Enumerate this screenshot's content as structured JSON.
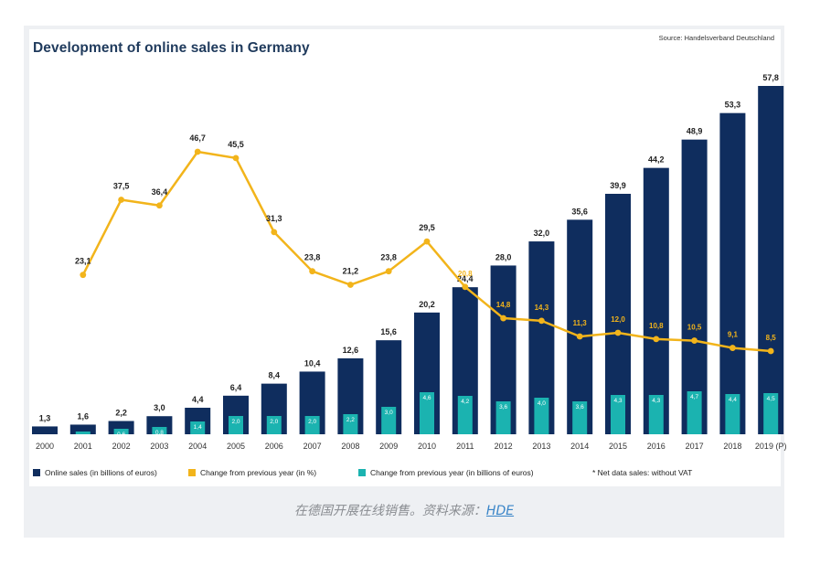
{
  "title": "Development of online sales in Germany",
  "source": "Source: Handelsverband Deutschland",
  "colors": {
    "sales": "#0f2d5e",
    "sales_change_euros": "#1bb3b0",
    "pct_change": "#f2b41b",
    "title": "#1f3a5c"
  },
  "chart_data": {
    "type": "bar",
    "title": "Development of online sales in Germany",
    "categories": [
      "2000",
      "2001",
      "2002",
      "2003",
      "2004",
      "2005",
      "2006",
      "2007",
      "2008",
      "2009",
      "2010",
      "2011",
      "2012",
      "2013",
      "2014",
      "2015",
      "2016",
      "2017",
      "2018",
      "2019 (P)"
    ],
    "series": [
      {
        "name": "Online sales (in billions of euros)",
        "type": "bar",
        "values": [
          1.3,
          1.6,
          2.2,
          3.0,
          4.4,
          6.4,
          8.4,
          10.4,
          12.6,
          15.6,
          20.2,
          24.4,
          28.0,
          32.0,
          35.6,
          39.9,
          44.2,
          48.9,
          53.3,
          57.8
        ],
        "labels": [
          "1,3",
          "1,6",
          "2,2",
          "3,0",
          "4,4",
          "6,4",
          "8,4",
          "10,4",
          "12,6",
          "15,6",
          "20,2",
          "24,4",
          "28,0",
          "32,0",
          "35,6",
          "39,9",
          "44,2",
          "48,9",
          "53,3",
          "57,8"
        ]
      },
      {
        "name": "Change from previous year (in billions of euros)",
        "type": "bar",
        "values": [
          null,
          0.3,
          0.6,
          0.8,
          1.4,
          2.0,
          2.0,
          2.0,
          2.2,
          3.0,
          4.6,
          4.2,
          3.6,
          4.0,
          3.6,
          4.3,
          4.3,
          4.7,
          4.4,
          4.5
        ],
        "labels": [
          "",
          "0,3",
          "0,6",
          "0,8",
          "1,4",
          "2,0",
          "2,0",
          "2,0",
          "2,2",
          "3,0",
          "4,6",
          "4,2",
          "3,6",
          "4,0",
          "3,6",
          "4,3",
          "4,3",
          "4,7",
          "4,4",
          "4,5"
        ]
      },
      {
        "name": "Change from previous year (in %)",
        "type": "line",
        "values": [
          null,
          23.1,
          37.5,
          36.4,
          46.7,
          45.5,
          31.3,
          23.8,
          21.2,
          23.8,
          29.5,
          20.8,
          14.8,
          14.3,
          11.3,
          12.0,
          10.8,
          10.5,
          9.1,
          8.5
        ],
        "labels": [
          "",
          "23,1",
          "37,5",
          "36,4",
          "46,7",
          "45,5",
          "31,3",
          "23,8",
          "21,2",
          "23,8",
          "29,5",
          "20,8",
          "14,8",
          "14,3",
          "11,3",
          "12,0",
          "10,8",
          "10,5",
          "9,1",
          "8,5"
        ]
      }
    ],
    "legend": [
      "Online sales (in billions of euros)",
      "Change from previous year (in %)",
      "Change from previous year (in billions of euros)"
    ],
    "legend_position": "bottom",
    "note": "* Net data sales: without VAT",
    "grid": false
  },
  "caption": {
    "text": "在德国开展在线销售。资料来源：",
    "link": "HDE"
  }
}
